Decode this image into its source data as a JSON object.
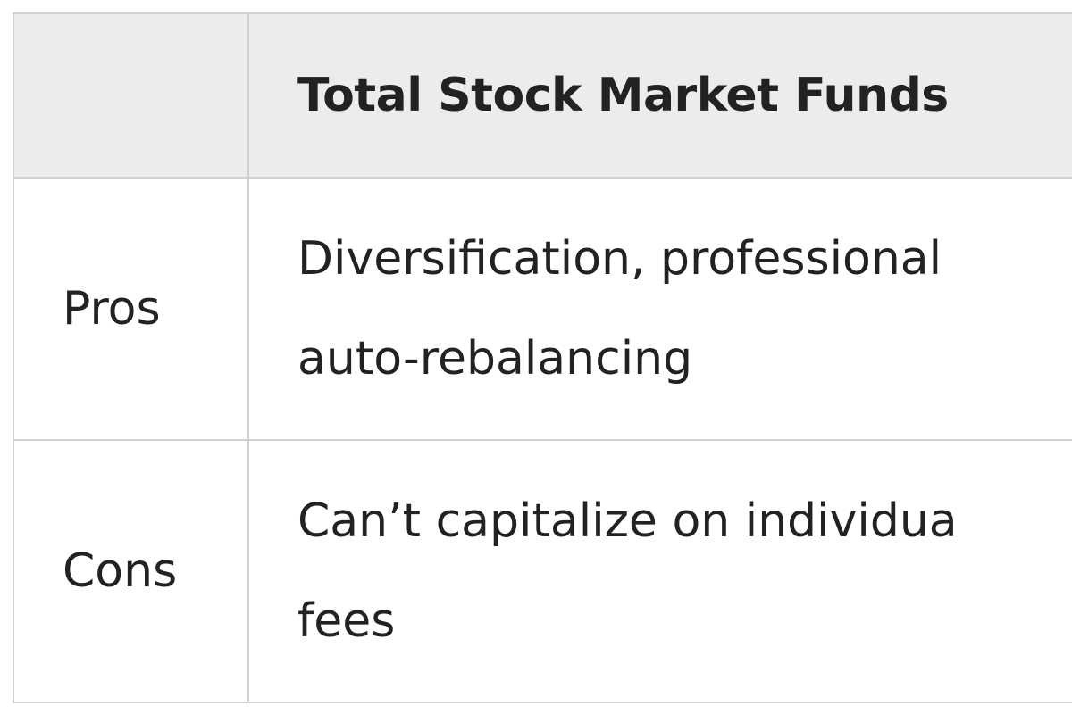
{
  "table": {
    "header": {
      "corner": "",
      "column_1": "Total Stock Market Funds"
    },
    "rows": [
      {
        "label": "Pros",
        "content_line_1": "Diversification, professional",
        "content_line_2": "auto-rebalancing"
      },
      {
        "label": "Cons",
        "content_line_1": "Can’t capitalize on individua",
        "content_line_2": "fees"
      }
    ]
  },
  "colors": {
    "header_background": "#ececec",
    "border": "#d0d0d0",
    "text": "#222222"
  }
}
